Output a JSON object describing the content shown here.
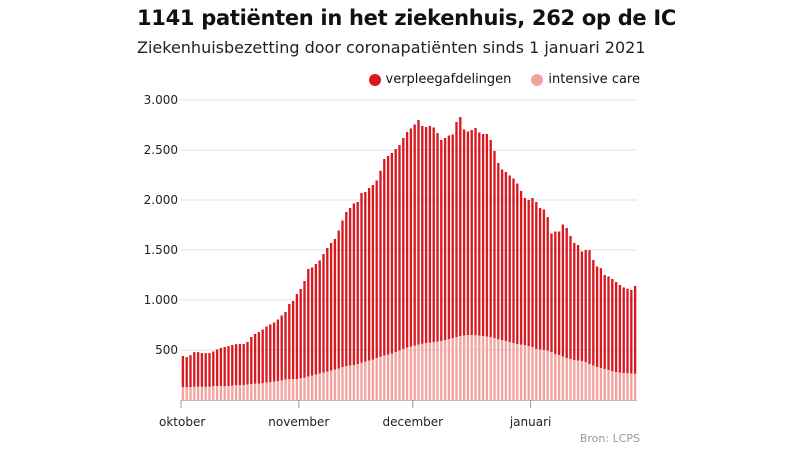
{
  "header": {
    "title": "1141 patiënten in het ziekenhuis, 262 op de IC",
    "subtitle": "Ziekenhuisbezetting door coronapatiënten sinds 1 januari 2021"
  },
  "legend": {
    "items": [
      {
        "label": "verpleegafdelingen",
        "color": "#d71920"
      },
      {
        "label": "intensive care",
        "color": "#f4a4a0"
      }
    ]
  },
  "source": "Bron: LCPS",
  "chart_data": {
    "type": "bar",
    "stacked": true,
    "ylim": [
      0,
      3000
    ],
    "yticks": [
      {
        "value": 500,
        "label": "500"
      },
      {
        "value": 1000,
        "label": "1.000"
      },
      {
        "value": 1500,
        "label": "1.500"
      },
      {
        "value": 2000,
        "label": "2.000"
      },
      {
        "value": 2500,
        "label": "2.500"
      },
      {
        "value": 3000,
        "label": "3.000"
      }
    ],
    "xticks": [
      {
        "index": 0,
        "label": "oktober"
      },
      {
        "index": 31,
        "label": "november"
      },
      {
        "index": 61,
        "label": "december"
      },
      {
        "index": 92,
        "label": "januari"
      }
    ],
    "grid": "horizontal",
    "legend_position": "top-right",
    "series": [
      {
        "name": "intensive care",
        "color": "#f4a4a0",
        "values": [
          130,
          128,
          130,
          133,
          134,
          133,
          131,
          134,
          138,
          140,
          141,
          140,
          141,
          145,
          148,
          150,
          150,
          155,
          160,
          163,
          165,
          170,
          175,
          180,
          185,
          190,
          197,
          205,
          208,
          210,
          210,
          218,
          225,
          235,
          245,
          255,
          265,
          275,
          285,
          295,
          305,
          315,
          330,
          340,
          345,
          350,
          360,
          375,
          385,
          395,
          405,
          420,
          432,
          445,
          455,
          465,
          480,
          495,
          510,
          525,
          535,
          545,
          555,
          562,
          570,
          575,
          580,
          585,
          590,
          600,
          610,
          620,
          630,
          640,
          645,
          650,
          650,
          648,
          645,
          640,
          635,
          630,
          620,
          610,
          600,
          590,
          580,
          570,
          560,
          555,
          550,
          540,
          530,
          510,
          505,
          500,
          495,
          480,
          460,
          450,
          435,
          420,
          410,
          400,
          395,
          390,
          380,
          360,
          345,
          330,
          320,
          310,
          300,
          290,
          280,
          275,
          270,
          268,
          265,
          262
        ]
      },
      {
        "name": "verpleegafdelingen",
        "color": "#d71920",
        "values": [
          310,
          300,
          318,
          345,
          345,
          337,
          338,
          336,
          347,
          365,
          380,
          390,
          398,
          405,
          410,
          410,
          410,
          425,
          470,
          497,
          515,
          535,
          560,
          575,
          590,
          615,
          648,
          675,
          752,
          780,
          850,
          892,
          965,
          1075,
          1080,
          1105,
          1130,
          1185,
          1235,
          1275,
          1305,
          1380,
          1465,
          1540,
          1575,
          1615,
          1620,
          1695,
          1695,
          1725,
          1745,
          1775,
          1860,
          1965,
          1985,
          2005,
          2030,
          2055,
          2110,
          2155,
          2180,
          2210,
          2245,
          2178,
          2160,
          2165,
          2145,
          2085,
          2010,
          2020,
          2035,
          2035,
          2150,
          2190,
          2060,
          2035,
          2050,
          2072,
          2030,
          2020,
          2025,
          1970,
          1870,
          1760,
          1705,
          1690,
          1665,
          1645,
          1605,
          1535,
          1470,
          1460,
          1490,
          1470,
          1415,
          1405,
          1335,
          1185,
          1225,
          1235,
          1320,
          1300,
          1230,
          1170,
          1155,
          1095,
          1120,
          1138,
          1055,
          1005,
          998,
          940,
          936,
          920,
          900,
          875,
          855,
          845,
          835,
          879
        ]
      }
    ]
  }
}
